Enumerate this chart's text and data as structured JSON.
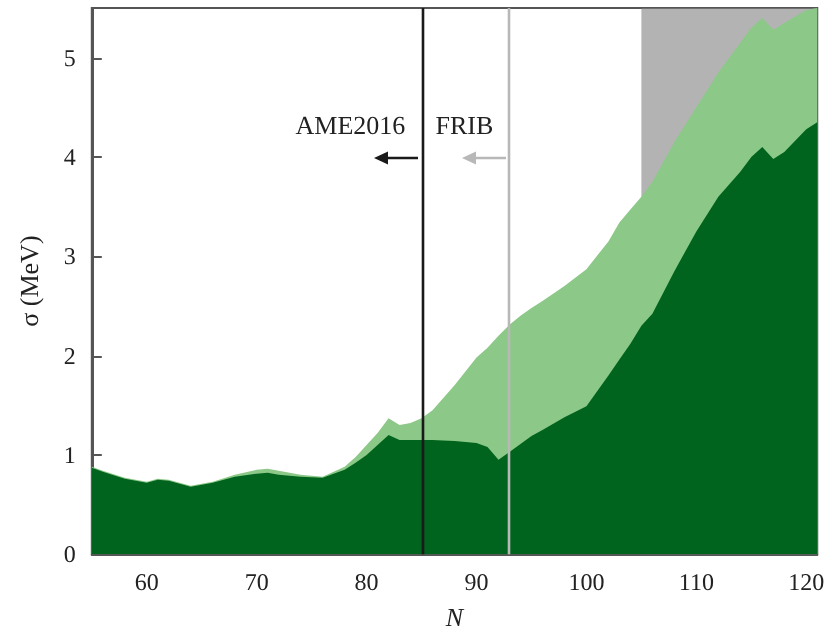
{
  "chart_data": {
    "type": "area",
    "xlabel": "N",
    "ylabel": "σ (MeV)",
    "x": [
      55,
      56,
      58,
      60,
      61,
      62,
      64,
      66,
      68,
      70,
      71,
      72,
      74,
      76,
      78,
      79,
      80,
      81,
      82,
      83,
      84,
      85,
      86,
      88,
      90,
      91,
      92,
      93,
      94,
      95,
      96,
      98,
      100,
      102,
      103,
      104,
      105,
      106,
      108,
      110,
      112,
      114,
      115,
      116,
      117,
      118,
      120,
      121
    ],
    "series": [
      {
        "color": "#8cc887",
        "values": [
          0.88,
          0.84,
          0.77,
          0.73,
          0.76,
          0.75,
          0.69,
          0.73,
          0.8,
          0.85,
          0.86,
          0.84,
          0.8,
          0.78,
          0.88,
          0.98,
          1.1,
          1.22,
          1.37,
          1.3,
          1.32,
          1.37,
          1.45,
          1.7,
          1.98,
          2.08,
          2.2,
          2.31,
          2.4,
          2.48,
          2.55,
          2.7,
          2.87,
          3.15,
          3.34,
          3.47,
          3.6,
          3.75,
          4.15,
          4.5,
          4.85,
          5.15,
          5.3,
          5.4,
          5.28,
          5.35,
          5.48,
          5.5
        ]
      },
      {
        "color": "#00641e",
        "values": [
          0.87,
          0.83,
          0.76,
          0.72,
          0.75,
          0.74,
          0.68,
          0.72,
          0.78,
          0.81,
          0.82,
          0.8,
          0.78,
          0.77,
          0.85,
          0.92,
          1.0,
          1.1,
          1.2,
          1.15,
          1.15,
          1.15,
          1.15,
          1.14,
          1.12,
          1.08,
          0.95,
          1.03,
          1.11,
          1.19,
          1.25,
          1.38,
          1.49,
          1.8,
          1.96,
          2.12,
          2.3,
          2.42,
          2.85,
          3.25,
          3.6,
          3.85,
          4.0,
          4.1,
          3.98,
          4.05,
          4.28,
          4.35
        ]
      }
    ],
    "xlim": [
      55,
      121
    ],
    "xticks": [
      60,
      70,
      80,
      90,
      100,
      110,
      120
    ],
    "ylim": [
      0,
      5.5
    ],
    "yticks": [
      0,
      1,
      2,
      3,
      4,
      5
    ],
    "grid": false,
    "ref_lines": [
      {
        "axis": "x",
        "value": 85,
        "label": "AME2016",
        "color": "#1a1a1a"
      },
      {
        "axis": "x",
        "value": 93,
        "label": "FRIB",
        "color": "#b8b8b8"
      }
    ],
    "bands": [
      {
        "axis": "x",
        "from": 105,
        "to": 121,
        "color": "#808080"
      }
    ]
  }
}
